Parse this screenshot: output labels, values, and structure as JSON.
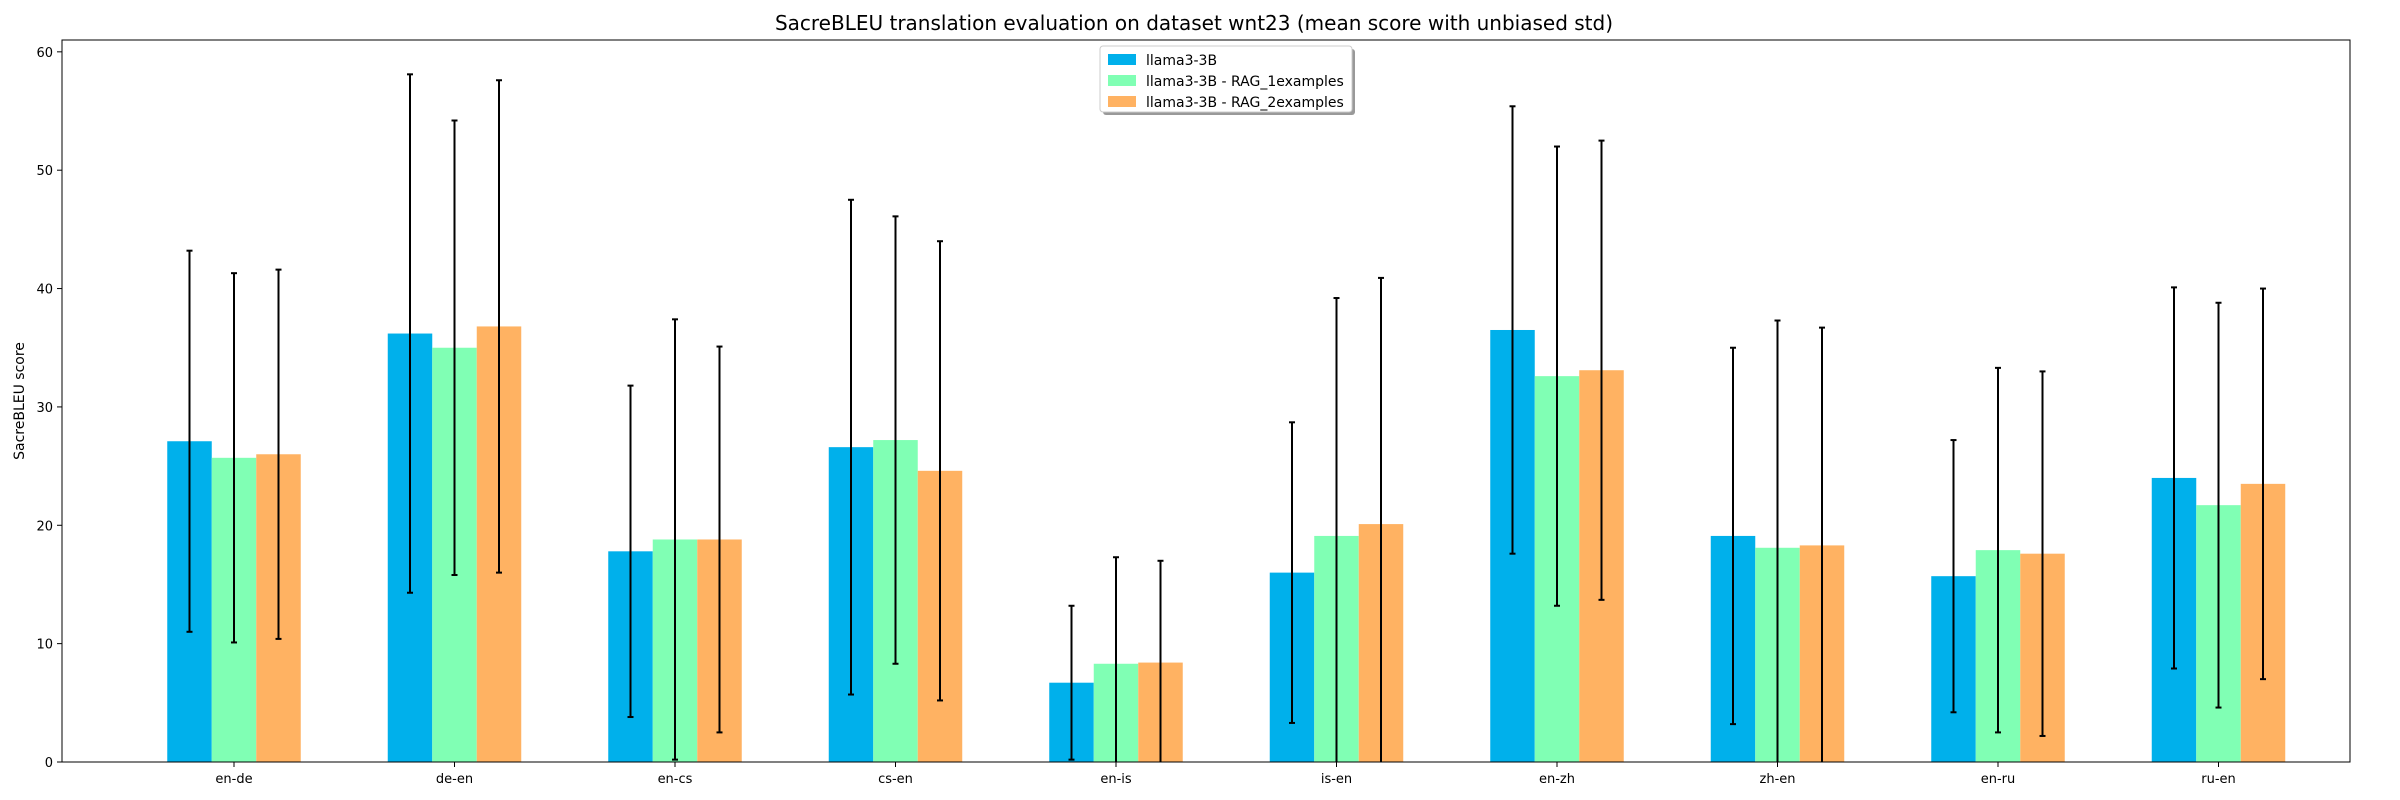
{
  "chart_data": {
    "type": "bar",
    "title": "SacreBLEU translation evaluation on dataset wnt23 (mean score with unbiased std)",
    "xlabel": "",
    "ylabel": "SacreBLEU score",
    "ylim": [
      0,
      61
    ],
    "yticks": [
      0,
      10,
      20,
      30,
      40,
      50,
      60
    ],
    "grid": false,
    "legend_position": "top-center",
    "categories": [
      "en-de",
      "de-en",
      "en-cs",
      "cs-en",
      "en-is",
      "is-en",
      "en-zh",
      "zh-en",
      "en-ru",
      "ru-en"
    ],
    "series": [
      {
        "name": "llama3-3B",
        "color": "#00b0eb",
        "values": [
          27.1,
          36.2,
          17.8,
          26.6,
          6.7,
          16.0,
          36.5,
          19.1,
          15.7,
          24.0
        ],
        "errors": [
          16.1,
          21.9,
          14.0,
          20.9,
          6.5,
          12.7,
          18.9,
          15.9,
          11.5,
          16.1
        ]
      },
      {
        "name": "llama3-3B - RAG_1examples",
        "color": "#80ffb4",
        "values": [
          25.7,
          35.0,
          18.8,
          27.2,
          8.3,
          19.1,
          32.6,
          18.1,
          17.9,
          21.7
        ],
        "errors": [
          15.6,
          19.2,
          18.6,
          18.9,
          9.0,
          20.1,
          19.4,
          19.2,
          15.4,
          17.1
        ]
      },
      {
        "name": "llama3-3B - RAG_2examples",
        "color": "#ffb262",
        "values": [
          26.0,
          36.8,
          18.8,
          24.6,
          8.4,
          20.1,
          33.1,
          18.3,
          17.6,
          23.5
        ],
        "errors": [
          15.6,
          20.8,
          16.3,
          19.4,
          8.6,
          20.8,
          19.4,
          18.4,
          15.4,
          16.5
        ]
      }
    ]
  }
}
